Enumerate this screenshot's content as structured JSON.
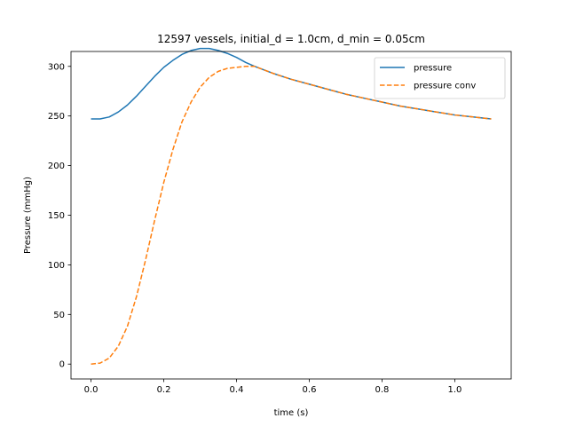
{
  "chart_data": {
    "type": "line",
    "title": "12597 vessels, initial_d = 1.0cm, d_min = 0.05cm",
    "xlabel": "time (s)",
    "ylabel": "Pressure (mmHg)",
    "xlim": [
      -0.055,
      1.155
    ],
    "ylim": [
      -15.0,
      315.0
    ],
    "xticks": [
      0.0,
      0.2,
      0.4,
      0.6,
      0.8,
      1.0
    ],
    "xtick_labels": [
      "0.0",
      "0.2",
      "0.4",
      "0.6",
      "0.8",
      "1.0"
    ],
    "yticks": [
      0,
      50,
      100,
      150,
      200,
      250,
      300
    ],
    "ytick_labels": [
      "0",
      "50",
      "100",
      "150",
      "200",
      "250",
      "300"
    ],
    "grid": false,
    "legend_position": "top-right",
    "series": [
      {
        "name": "pressure",
        "color": "#1f77b4",
        "style": "solid",
        "points": [
          [
            0.0,
            247
          ],
          [
            0.025,
            247
          ],
          [
            0.05,
            249
          ],
          [
            0.075,
            254
          ],
          [
            0.1,
            261
          ],
          [
            0.125,
            270
          ],
          [
            0.15,
            280
          ],
          [
            0.175,
            290
          ],
          [
            0.2,
            299
          ],
          [
            0.225,
            306
          ],
          [
            0.25,
            312
          ],
          [
            0.275,
            316
          ],
          [
            0.3,
            318
          ],
          [
            0.325,
            318
          ],
          [
            0.35,
            316
          ],
          [
            0.375,
            313
          ],
          [
            0.4,
            309
          ],
          [
            0.425,
            304
          ],
          [
            0.45,
            300
          ],
          [
            0.5,
            293
          ],
          [
            0.55,
            287
          ],
          [
            0.6,
            282
          ],
          [
            0.65,
            277
          ],
          [
            0.7,
            272
          ],
          [
            0.75,
            268
          ],
          [
            0.8,
            264
          ],
          [
            0.85,
            260
          ],
          [
            0.9,
            257
          ],
          [
            0.95,
            254
          ],
          [
            1.0,
            251
          ],
          [
            1.05,
            249
          ],
          [
            1.1,
            247
          ]
        ]
      },
      {
        "name": "pressure conv",
        "color": "#ff7f0e",
        "style": "dashed",
        "points": [
          [
            0.0,
            0
          ],
          [
            0.025,
            1
          ],
          [
            0.05,
            6
          ],
          [
            0.075,
            18
          ],
          [
            0.1,
            38
          ],
          [
            0.125,
            68
          ],
          [
            0.15,
            105
          ],
          [
            0.175,
            145
          ],
          [
            0.2,
            183
          ],
          [
            0.225,
            216
          ],
          [
            0.25,
            244
          ],
          [
            0.275,
            264
          ],
          [
            0.3,
            279
          ],
          [
            0.325,
            289
          ],
          [
            0.35,
            295
          ],
          [
            0.375,
            298
          ],
          [
            0.4,
            299
          ],
          [
            0.425,
            300
          ],
          [
            0.45,
            300
          ],
          [
            0.5,
            293
          ],
          [
            0.55,
            287
          ],
          [
            0.6,
            282
          ],
          [
            0.65,
            277
          ],
          [
            0.7,
            272
          ],
          [
            0.75,
            268
          ],
          [
            0.8,
            264
          ],
          [
            0.85,
            260
          ],
          [
            0.9,
            257
          ],
          [
            0.95,
            254
          ],
          [
            1.0,
            251
          ],
          [
            1.05,
            249
          ],
          [
            1.1,
            247
          ]
        ]
      }
    ]
  }
}
